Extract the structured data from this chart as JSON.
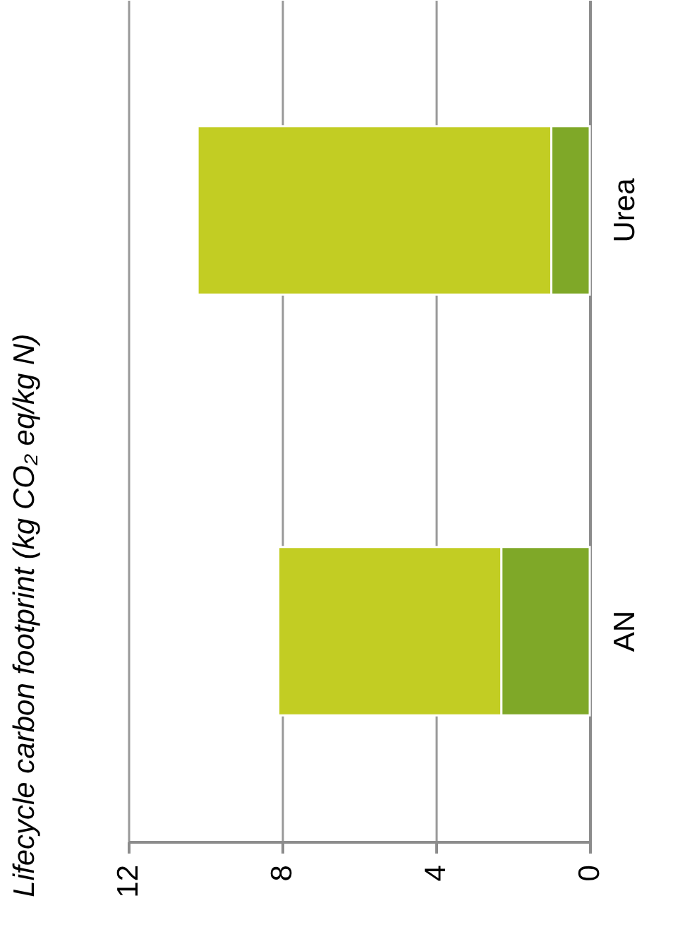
{
  "chart_data": {
    "type": "bar",
    "orientation": "horizontal",
    "title": "Lifecycle carbon footprint (kg CO₂ eq/kg N)",
    "categories": [
      "Urea",
      "AN"
    ],
    "stacked": true,
    "series": [
      {
        "color": "#7fa828",
        "values": [
          1.0,
          2.3
        ]
      },
      {
        "color": "#c2cd23",
        "values": [
          9.2,
          5.8
        ]
      }
    ],
    "xlim": [
      12,
      0
    ],
    "xticks": [
      12,
      8,
      4,
      0
    ],
    "grid": "x"
  }
}
